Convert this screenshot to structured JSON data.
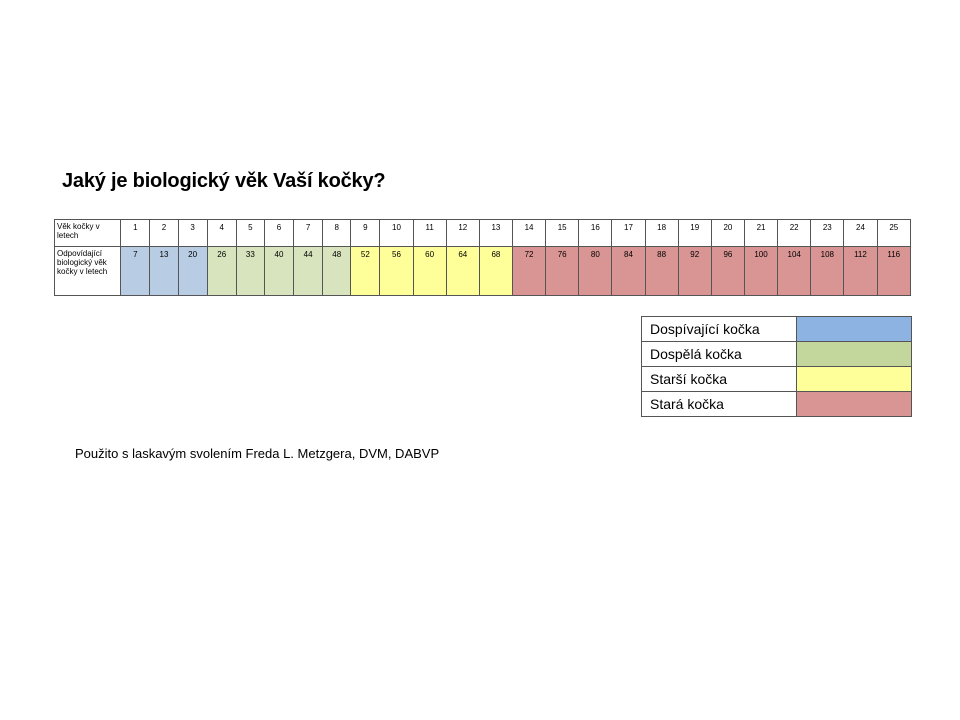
{
  "title": "Jaký je biologický věk Vaší kočky?",
  "table": {
    "row1_label": "Věk kočky v letech",
    "row2_label": "Odpovídající biologický věk kočky v letech",
    "cat_ages": [
      "1",
      "2",
      "3",
      "4",
      "5",
      "6",
      "7",
      "8",
      "9",
      "10",
      "11",
      "12",
      "13",
      "14",
      "15",
      "16",
      "17",
      "18",
      "19",
      "20",
      "21",
      "22",
      "23",
      "24",
      "25"
    ],
    "bio_ages": [
      "7",
      "13",
      "20",
      "26",
      "33",
      "40",
      "44",
      "48",
      "52",
      "56",
      "60",
      "64",
      "68",
      "72",
      "76",
      "80",
      "84",
      "88",
      "92",
      "96",
      "100",
      "104",
      "108",
      "112",
      "116"
    ],
    "categories": [
      "teen",
      "teen",
      "teen",
      "adult",
      "adult",
      "adult",
      "adult",
      "adult",
      "senior",
      "senior",
      "senior",
      "senior",
      "senior",
      "old",
      "old",
      "old",
      "old",
      "old",
      "old",
      "old",
      "old",
      "old",
      "old",
      "old",
      "old"
    ]
  },
  "cell_colors": {
    "teen": "#b8cce4",
    "adult": "#d7e4bd",
    "senior": "#ffff99",
    "old": "#d99594"
  },
  "legend": [
    {
      "label": "Dospívající kočka",
      "color": "#8db3e2"
    },
    {
      "label": "Dospělá kočka",
      "color": "#c3d69b"
    },
    {
      "label": "Starší kočka",
      "color": "#ffff99"
    },
    {
      "label": "Stará kočka",
      "color": "#d99594"
    }
  ],
  "credit": "Použito s laskavým svolením Freda L. Metzgera, DVM, DABVP"
}
